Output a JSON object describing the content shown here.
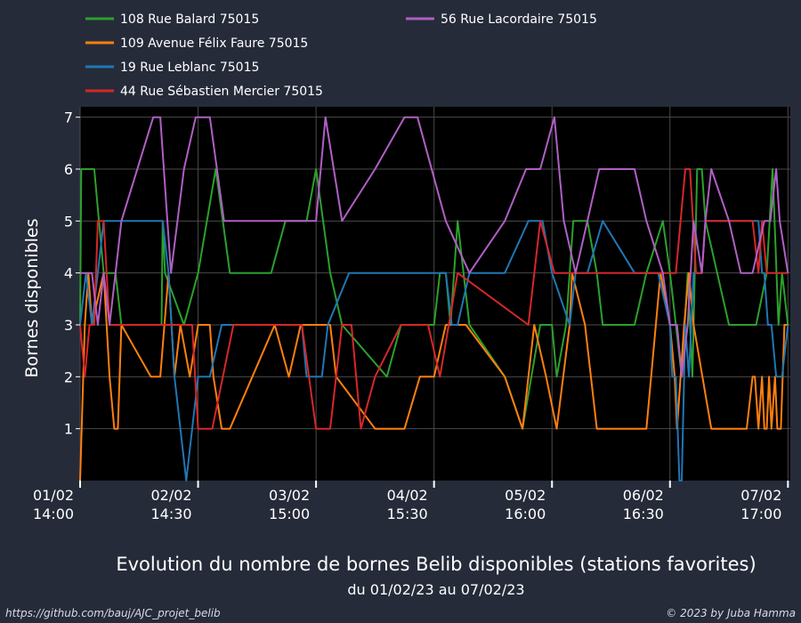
{
  "chart_data": {
    "type": "line",
    "title": "Evolution du nombre de bornes Belib disponibles (stations favorites)",
    "subtitle": "du 01/02/23 au 07/02/23",
    "ylabel": "Bornes disponibles",
    "xlabel": "",
    "x_ticks": [
      {
        "t": 0,
        "l1": "01/02",
        "l2": "14:00"
      },
      {
        "t": 1,
        "l1": "02/02",
        "l2": "14:30"
      },
      {
        "t": 2,
        "l1": "03/02",
        "l2": "15:00"
      },
      {
        "t": 3,
        "l1": "04/02",
        "l2": "15:30"
      },
      {
        "t": 4,
        "l1": "05/02",
        "l2": "16:00"
      },
      {
        "t": 5,
        "l1": "06/02",
        "l2": "16:30"
      },
      {
        "t": 6,
        "l1": "07/02",
        "l2": "17:00"
      }
    ],
    "y_ticks": [
      1,
      2,
      3,
      4,
      5,
      6,
      7
    ],
    "xlim": [
      0,
      6.02
    ],
    "ylim": [
      0,
      7.2
    ],
    "grid": true,
    "legend_position": "top",
    "series": [
      {
        "name": "108 Rue Balard 75015",
        "color": "#2ca02c",
        "points": [
          [
            0,
            3
          ],
          [
            0.01,
            6
          ],
          [
            0.12,
            6
          ],
          [
            0.2,
            4
          ],
          [
            0.3,
            4
          ],
          [
            0.35,
            3
          ],
          [
            0.5,
            3
          ],
          [
            0.69,
            3
          ],
          [
            0.7,
            5
          ],
          [
            0.72,
            4
          ],
          [
            0.88,
            3
          ],
          [
            1.0,
            4
          ],
          [
            1.15,
            6
          ],
          [
            1.27,
            4
          ],
          [
            1.62,
            4
          ],
          [
            1.74,
            5
          ],
          [
            1.92,
            5
          ],
          [
            2.0,
            6
          ],
          [
            2.12,
            4
          ],
          [
            2.22,
            3
          ],
          [
            2.6,
            2
          ],
          [
            2.72,
            3
          ],
          [
            3.0,
            3
          ],
          [
            3.05,
            4
          ],
          [
            3.1,
            4
          ],
          [
            3.14,
            3
          ],
          [
            3.2,
            5
          ],
          [
            3.3,
            3
          ],
          [
            3.6,
            2
          ],
          [
            3.75,
            1
          ],
          [
            3.9,
            3
          ],
          [
            4.0,
            3
          ],
          [
            4.04,
            2
          ],
          [
            4.12,
            3
          ],
          [
            4.18,
            5
          ],
          [
            4.3,
            5
          ],
          [
            4.38,
            4
          ],
          [
            4.43,
            3
          ],
          [
            4.7,
            3
          ],
          [
            4.8,
            4
          ],
          [
            4.94,
            5
          ],
          [
            5.0,
            4
          ],
          [
            5.05,
            3
          ],
          [
            5.1,
            2
          ],
          [
            5.15,
            4
          ],
          [
            5.19,
            2
          ],
          [
            5.23,
            6
          ],
          [
            5.27,
            6
          ],
          [
            5.3,
            5
          ],
          [
            5.4,
            4
          ],
          [
            5.5,
            3
          ],
          [
            5.73,
            3
          ],
          [
            5.82,
            4
          ],
          [
            5.87,
            6
          ],
          [
            5.92,
            3
          ],
          [
            5.95,
            4
          ],
          [
            6.0,
            3
          ]
        ]
      },
      {
        "name": "109 Avenue Félix Faure 75015",
        "color": "#ff7f0e",
        "points": [
          [
            0,
            0
          ],
          [
            0.04,
            3
          ],
          [
            0.07,
            4
          ],
          [
            0.1,
            3
          ],
          [
            0.2,
            4
          ],
          [
            0.25,
            2
          ],
          [
            0.29,
            1
          ],
          [
            0.32,
            1
          ],
          [
            0.35,
            3
          ],
          [
            0.6,
            2
          ],
          [
            0.68,
            2
          ],
          [
            0.75,
            4
          ],
          [
            0.8,
            2
          ],
          [
            0.85,
            3
          ],
          [
            0.93,
            2
          ],
          [
            1.0,
            3
          ],
          [
            1.1,
            3
          ],
          [
            1.13,
            2
          ],
          [
            1.2,
            1
          ],
          [
            1.27,
            1
          ],
          [
            1.65,
            3
          ],
          [
            1.77,
            2
          ],
          [
            1.87,
            3
          ],
          [
            2.12,
            3
          ],
          [
            2.17,
            2
          ],
          [
            2.5,
            1
          ],
          [
            2.75,
            1
          ],
          [
            2.88,
            2
          ],
          [
            3.0,
            2
          ],
          [
            3.1,
            3
          ],
          [
            3.27,
            3
          ],
          [
            3.6,
            2
          ],
          [
            3.75,
            1
          ],
          [
            3.85,
            3
          ],
          [
            3.95,
            2
          ],
          [
            4.04,
            1
          ],
          [
            4.15,
            3
          ],
          [
            4.17,
            4
          ],
          [
            4.28,
            3
          ],
          [
            4.38,
            1
          ],
          [
            4.7,
            1
          ],
          [
            4.8,
            1
          ],
          [
            4.92,
            4
          ],
          [
            5.0,
            3
          ],
          [
            5.04,
            2
          ],
          [
            5.06,
            1
          ],
          [
            5.12,
            3
          ],
          [
            5.16,
            4
          ],
          [
            5.2,
            3
          ],
          [
            5.35,
            1
          ],
          [
            5.65,
            1
          ],
          [
            5.7,
            2
          ],
          [
            5.72,
            2
          ],
          [
            5.75,
            1
          ],
          [
            5.78,
            2
          ],
          [
            5.8,
            1
          ],
          [
            5.82,
            1
          ],
          [
            5.84,
            2
          ],
          [
            5.86,
            1
          ],
          [
            5.89,
            2
          ],
          [
            5.91,
            1
          ],
          [
            5.94,
            1
          ],
          [
            5.97,
            3
          ],
          [
            6.0,
            3
          ]
        ]
      },
      {
        "name": "19 Rue Leblanc 75015",
        "color": "#1f77b4",
        "points": [
          [
            0,
            3
          ],
          [
            0.05,
            4
          ],
          [
            0.1,
            3
          ],
          [
            0.15,
            4
          ],
          [
            0.2,
            5
          ],
          [
            0.7,
            5
          ],
          [
            0.75,
            4
          ],
          [
            0.8,
            2
          ],
          [
            0.9,
            0
          ],
          [
            1.0,
            2
          ],
          [
            1.1,
            2
          ],
          [
            1.2,
            3
          ],
          [
            1.75,
            3
          ],
          [
            1.88,
            3
          ],
          [
            1.92,
            2
          ],
          [
            2.0,
            2
          ],
          [
            2.05,
            2
          ],
          [
            2.1,
            3
          ],
          [
            2.28,
            4
          ],
          [
            3.1,
            4
          ],
          [
            3.15,
            3
          ],
          [
            3.2,
            3
          ],
          [
            3.3,
            4
          ],
          [
            3.45,
            4
          ],
          [
            3.6,
            4
          ],
          [
            3.7,
            4.5
          ],
          [
            3.8,
            5
          ],
          [
            3.92,
            5
          ],
          [
            4.0,
            4
          ],
          [
            4.15,
            3
          ],
          [
            4.2,
            4
          ],
          [
            4.3,
            4
          ],
          [
            4.43,
            5
          ],
          [
            4.7,
            4
          ],
          [
            4.75,
            4
          ],
          [
            4.9,
            4
          ],
          [
            5.0,
            3
          ],
          [
            5.02,
            2
          ],
          [
            5.05,
            2
          ],
          [
            5.08,
            0
          ],
          [
            5.1,
            0
          ],
          [
            5.13,
            3
          ],
          [
            5.16,
            2
          ],
          [
            5.2,
            4
          ],
          [
            5.27,
            4
          ],
          [
            5.3,
            5
          ],
          [
            5.7,
            5
          ],
          [
            5.75,
            5
          ],
          [
            5.78,
            4
          ],
          [
            5.8,
            4
          ],
          [
            5.83,
            3
          ],
          [
            5.86,
            3
          ],
          [
            5.9,
            2
          ],
          [
            5.95,
            2
          ],
          [
            6.0,
            3
          ]
        ]
      },
      {
        "name": "44 Rue Sébastien Mercier 75015",
        "color": "#d62728",
        "points": [
          [
            0,
            3
          ],
          [
            0.04,
            2
          ],
          [
            0.08,
            3
          ],
          [
            0.12,
            3
          ],
          [
            0.15,
            5
          ],
          [
            0.2,
            5
          ],
          [
            0.25,
            3
          ],
          [
            0.95,
            3
          ],
          [
            1.0,
            1
          ],
          [
            1.12,
            1
          ],
          [
            1.3,
            3
          ],
          [
            1.74,
            3
          ],
          [
            1.88,
            3
          ],
          [
            2.0,
            1
          ],
          [
            2.12,
            1
          ],
          [
            2.22,
            3
          ],
          [
            2.3,
            3
          ],
          [
            2.38,
            1
          ],
          [
            2.5,
            2
          ],
          [
            2.72,
            3
          ],
          [
            2.95,
            3
          ],
          [
            3.05,
            2
          ],
          [
            3.2,
            4
          ],
          [
            3.8,
            3
          ],
          [
            3.9,
            5
          ],
          [
            4.02,
            4
          ],
          [
            4.3,
            4
          ],
          [
            4.7,
            4
          ],
          [
            5.0,
            4
          ],
          [
            5.05,
            4
          ],
          [
            5.13,
            6
          ],
          [
            5.17,
            6
          ],
          [
            5.22,
            4
          ],
          [
            5.27,
            4
          ],
          [
            5.3,
            5
          ],
          [
            5.7,
            5
          ],
          [
            5.75,
            4
          ],
          [
            5.78,
            5
          ],
          [
            5.82,
            4
          ],
          [
            5.88,
            4
          ],
          [
            6.0,
            4
          ]
        ]
      },
      {
        "name": "56 Rue Lacordaire 75015",
        "color": "#b05fc4",
        "points": [
          [
            0,
            4
          ],
          [
            0.1,
            4
          ],
          [
            0.15,
            3
          ],
          [
            0.2,
            4
          ],
          [
            0.25,
            3
          ],
          [
            0.3,
            4
          ],
          [
            0.35,
            5
          ],
          [
            0.62,
            7
          ],
          [
            0.68,
            7
          ],
          [
            0.77,
            4
          ],
          [
            0.88,
            6
          ],
          [
            0.98,
            7
          ],
          [
            1.1,
            7
          ],
          [
            1.22,
            5
          ],
          [
            1.3,
            5
          ],
          [
            1.75,
            5
          ],
          [
            1.9,
            5
          ],
          [
            2.0,
            5
          ],
          [
            2.08,
            7
          ],
          [
            2.22,
            5
          ],
          [
            2.5,
            6
          ],
          [
            2.75,
            7
          ],
          [
            2.86,
            7
          ],
          [
            3.1,
            5
          ],
          [
            3.3,
            4
          ],
          [
            3.6,
            5
          ],
          [
            3.78,
            6
          ],
          [
            3.9,
            6
          ],
          [
            4.02,
            7
          ],
          [
            4.1,
            5
          ],
          [
            4.2,
            4
          ],
          [
            4.3,
            5
          ],
          [
            4.4,
            6
          ],
          [
            4.6,
            6
          ],
          [
            4.7,
            6
          ],
          [
            4.8,
            5
          ],
          [
            4.94,
            4
          ],
          [
            5.0,
            3
          ],
          [
            5.06,
            3
          ],
          [
            5.1,
            2
          ],
          [
            5.15,
            3
          ],
          [
            5.2,
            5
          ],
          [
            5.27,
            4
          ],
          [
            5.3,
            5
          ],
          [
            5.35,
            6
          ],
          [
            5.5,
            5
          ],
          [
            5.6,
            4
          ],
          [
            5.7,
            4
          ],
          [
            5.8,
            5
          ],
          [
            5.85,
            5
          ],
          [
            5.9,
            6
          ],
          [
            5.93,
            5
          ],
          [
            6.0,
            4
          ]
        ]
      }
    ]
  },
  "footer": {
    "left": "https://github.com/bauj/AJC_projet_belib",
    "right": "© 2023 by Juba Hamma"
  }
}
